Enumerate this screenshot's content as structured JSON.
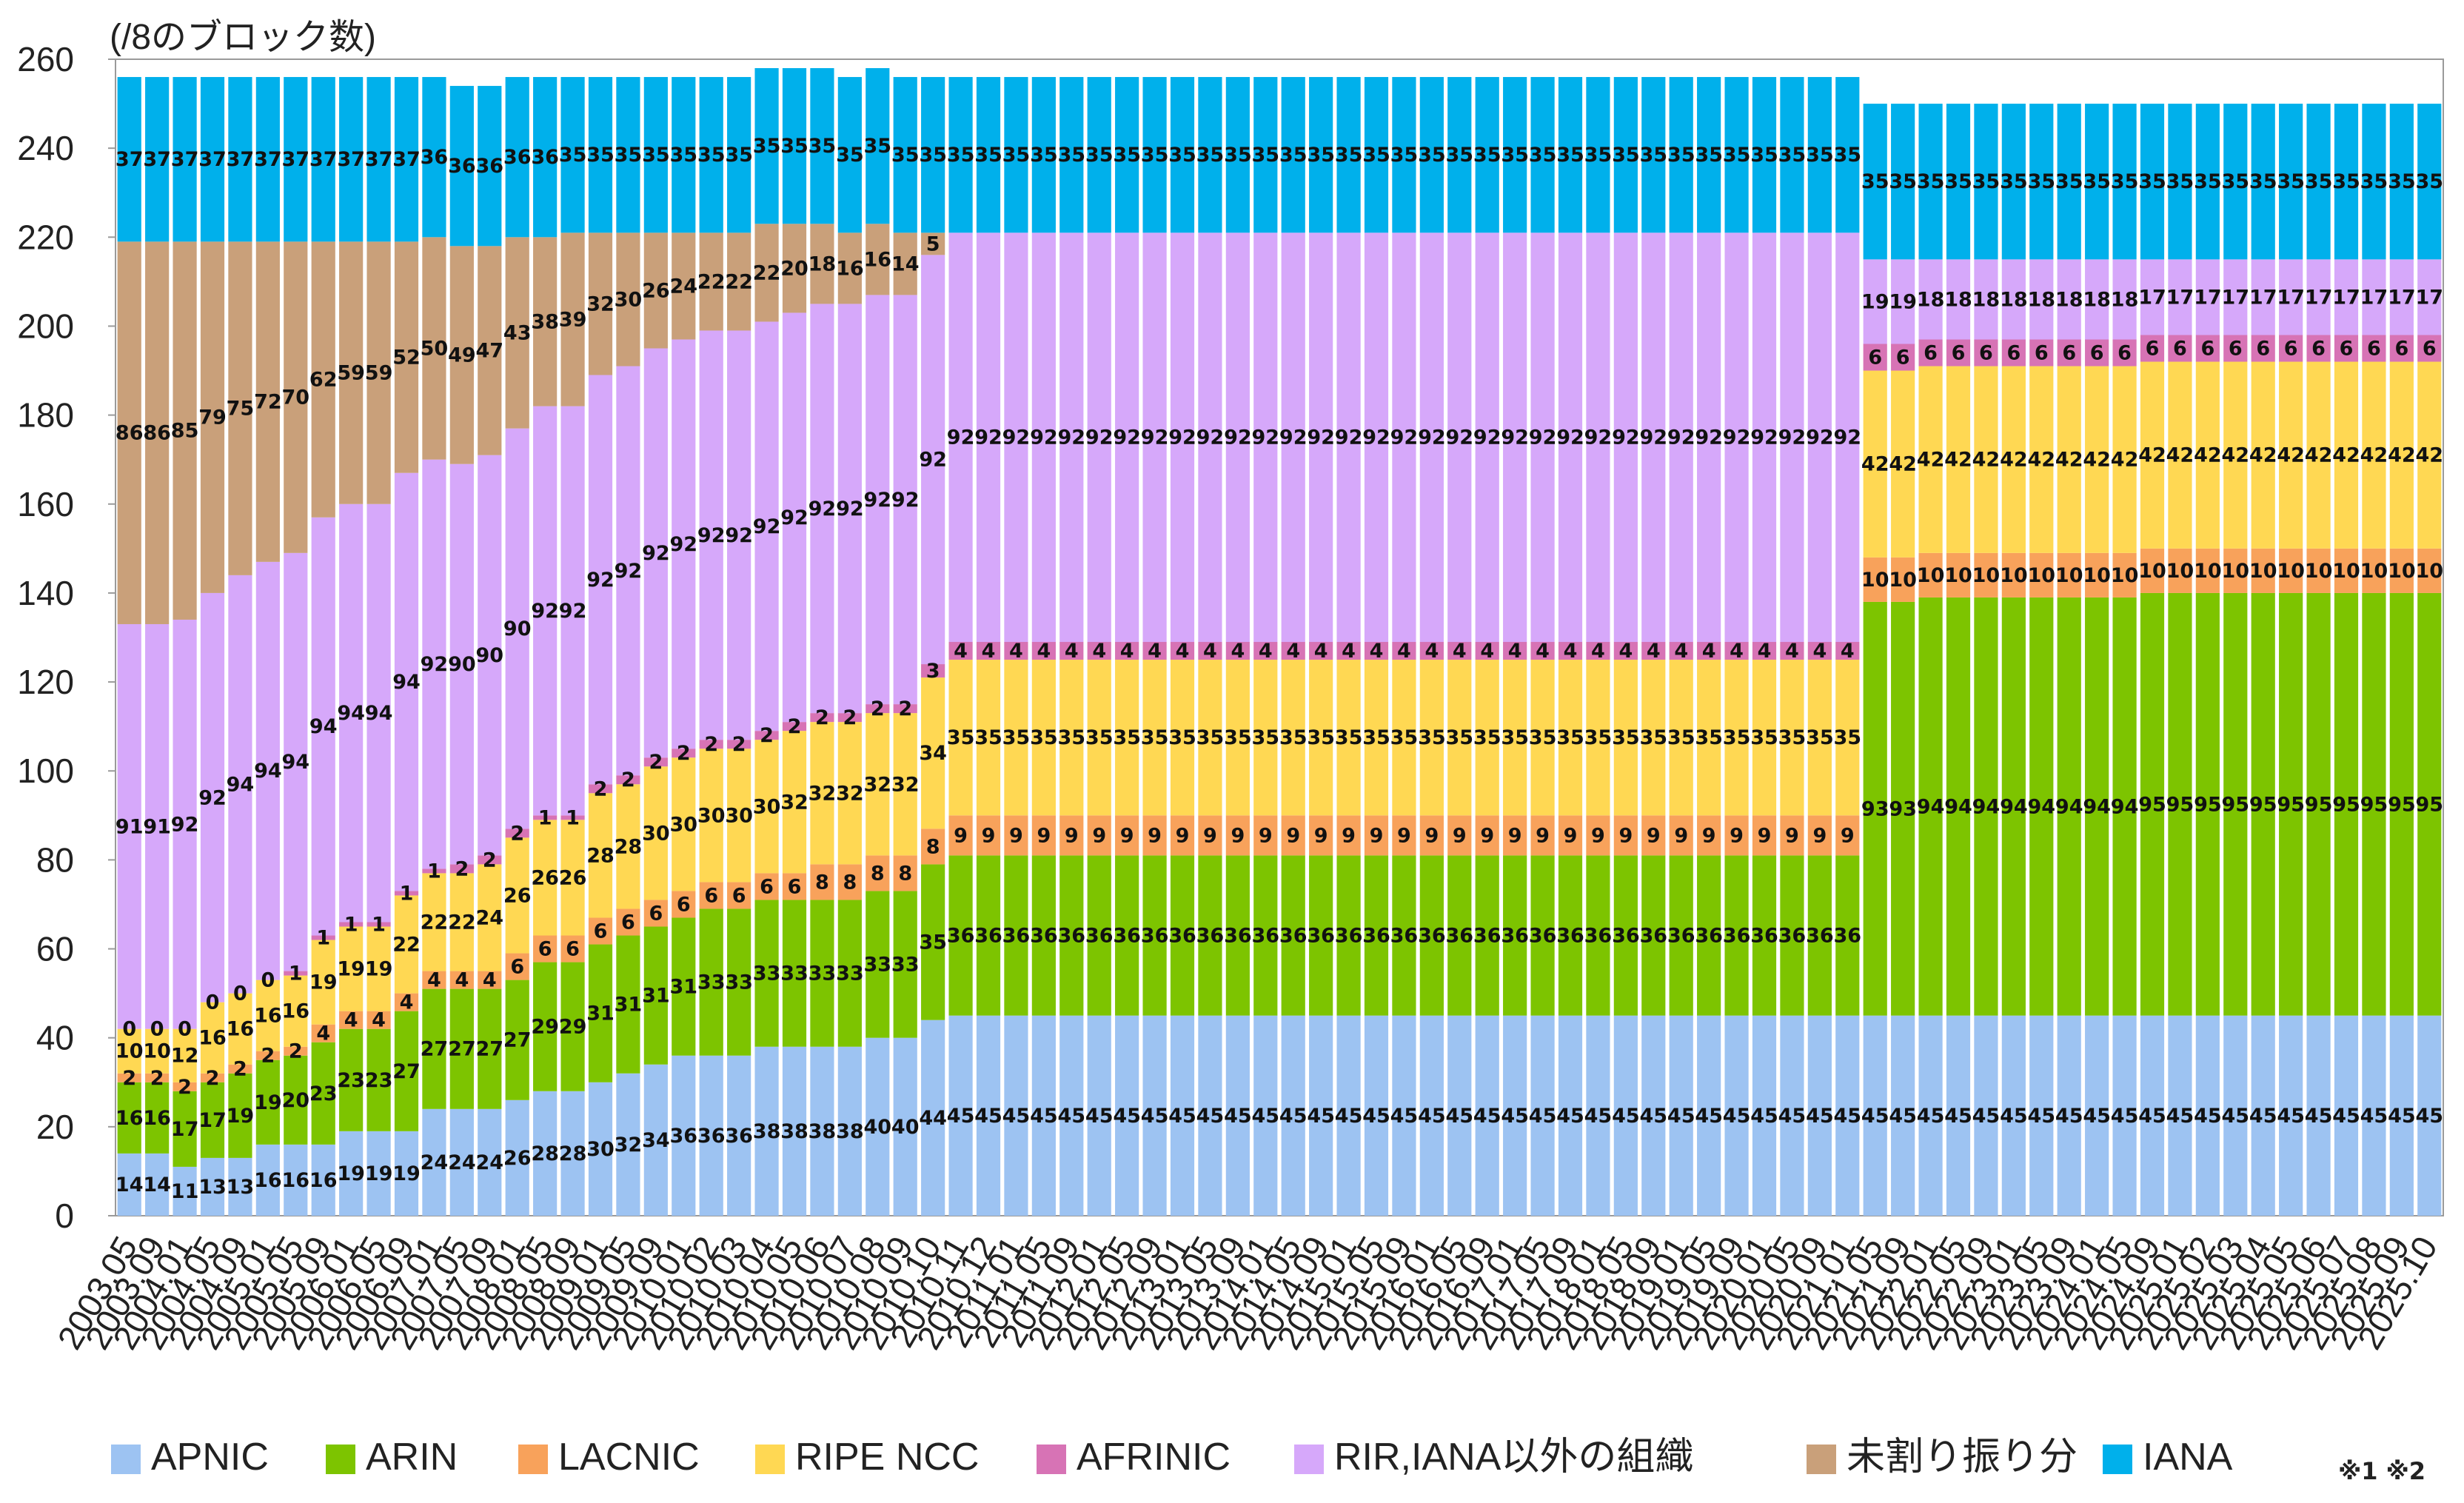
{
  "chart_data": {
    "type": "bar",
    "stacked": true,
    "unit_label": "(/8のブロック数)",
    "ylim": [
      0,
      260
    ],
    "yticks": [
      0,
      20,
      40,
      60,
      80,
      100,
      120,
      140,
      160,
      180,
      200,
      220,
      240,
      260
    ],
    "note": "※1 ※2",
    "categories": [
      "2003.05",
      "2003.09",
      "2004.01",
      "2004.05",
      "2004.09",
      "2005.01",
      "2005.05",
      "2005.09",
      "2006.01",
      "2006.05",
      "2006.09",
      "2007.01",
      "2007.05",
      "2007.09",
      "2008.01",
      "2008.05",
      "2008.09",
      "2009.01",
      "2009.05",
      "2009.09",
      "2010.01",
      "2010.02",
      "2010.03",
      "2010.04",
      "2010.05",
      "2010.06",
      "2010.07",
      "2010.08",
      "2010.09",
      "2010.10",
      "2010.11",
      "2010.12",
      "2011.01",
      "2011.05",
      "2011.09",
      "2012.01",
      "2012.05",
      "2012.09",
      "2013.01",
      "2013.05",
      "2013.09",
      "2014.01",
      "2014.05",
      "2014.09",
      "2015.01",
      "2015.05",
      "2015.09",
      "2016.01",
      "2016.05",
      "2016.09",
      "2017.01",
      "2017.05",
      "2017.09",
      "2018.01",
      "2018.05",
      "2018.09",
      "2019.01",
      "2019.05",
      "2019.09",
      "2020.01",
      "2020.05",
      "2020.09",
      "2021.01",
      "2021.05",
      "2021.09",
      "2022.01",
      "2022.05",
      "2022.09",
      "2023.01",
      "2023.05",
      "2023.09",
      "2024.01",
      "2024.05",
      "2024.09",
      "2025.01",
      "2025.02",
      "2025.03",
      "2025.04",
      "2025.05",
      "2025.06",
      "2025.07",
      "2025.08",
      "2025.09",
      "2025.10"
    ],
    "series": [
      {
        "name": "APNIC",
        "color": "#9DC3F2",
        "values": [
          14,
          14,
          11,
          13,
          13,
          16,
          16,
          16,
          19,
          19,
          19,
          24,
          24,
          24,
          26,
          28,
          28,
          30,
          32,
          34,
          36,
          36,
          36,
          38,
          38,
          38,
          38,
          40,
          40,
          44,
          45,
          45,
          45,
          45,
          45,
          45,
          45,
          45,
          45,
          45,
          45,
          45,
          45,
          45,
          45,
          45,
          45,
          45,
          45,
          45,
          45,
          45,
          45,
          45,
          45,
          45,
          45,
          45,
          45,
          45,
          45,
          45,
          45,
          45,
          45,
          45,
          45,
          45,
          45,
          45,
          45,
          45,
          45,
          45,
          45,
          45,
          45,
          45,
          45,
          45,
          45,
          45,
          45,
          45
        ]
      },
      {
        "name": "ARIN",
        "color": "#7DC400",
        "values": [
          16,
          16,
          17,
          17,
          19,
          19,
          20,
          23,
          23,
          23,
          27,
          27,
          27,
          27,
          27,
          29,
          29,
          31,
          31,
          31,
          31,
          33,
          33,
          33,
          33,
          33,
          33,
          33,
          33,
          35,
          36,
          36,
          36,
          36,
          36,
          36,
          36,
          36,
          36,
          36,
          36,
          36,
          36,
          36,
          36,
          36,
          36,
          36,
          36,
          36,
          36,
          36,
          36,
          36,
          36,
          36,
          36,
          36,
          36,
          36,
          36,
          36,
          36,
          93,
          93,
          94,
          94,
          94,
          94,
          94,
          94,
          94,
          94,
          95,
          95,
          95,
          95,
          95,
          95,
          95,
          95,
          95,
          95,
          95
        ]
      },
      {
        "name": "LACNIC",
        "color": "#F8A25B",
        "values": [
          2,
          2,
          2,
          2,
          2,
          2,
          2,
          4,
          4,
          4,
          4,
          4,
          4,
          4,
          6,
          6,
          6,
          6,
          6,
          6,
          6,
          6,
          6,
          6,
          6,
          8,
          8,
          8,
          8,
          8,
          9,
          9,
          9,
          9,
          9,
          9,
          9,
          9,
          9,
          9,
          9,
          9,
          9,
          9,
          9,
          9,
          9,
          9,
          9,
          9,
          9,
          9,
          9,
          9,
          9,
          9,
          9,
          9,
          9,
          9,
          9,
          9,
          9,
          10,
          10,
          10,
          10,
          10,
          10,
          10,
          10,
          10,
          10,
          10,
          10,
          10,
          10,
          10,
          10,
          10,
          10,
          10,
          10,
          10
        ]
      },
      {
        "name": "RIPE NCC",
        "color": "#FFD853",
        "values": [
          10,
          10,
          12,
          16,
          16,
          16,
          16,
          19,
          19,
          19,
          22,
          22,
          22,
          24,
          26,
          26,
          26,
          28,
          28,
          30,
          30,
          30,
          30,
          30,
          32,
          32,
          32,
          32,
          32,
          34,
          35,
          35,
          35,
          35,
          35,
          35,
          35,
          35,
          35,
          35,
          35,
          35,
          35,
          35,
          35,
          35,
          35,
          35,
          35,
          35,
          35,
          35,
          35,
          35,
          35,
          35,
          35,
          35,
          35,
          35,
          35,
          35,
          35,
          42,
          42,
          42,
          42,
          42,
          42,
          42,
          42,
          42,
          42,
          42,
          42,
          42,
          42,
          42,
          42,
          42,
          42,
          42,
          42,
          42
        ]
      },
      {
        "name": "AFRINIC",
        "color": "#D773B5",
        "values": [
          0,
          0,
          0,
          0,
          0,
          0,
          1,
          1,
          1,
          1,
          1,
          1,
          2,
          2,
          2,
          1,
          1,
          2,
          2,
          2,
          2,
          2,
          2,
          2,
          2,
          2,
          2,
          2,
          2,
          3,
          4,
          4,
          4,
          4,
          4,
          4,
          4,
          4,
          4,
          4,
          4,
          4,
          4,
          4,
          4,
          4,
          4,
          4,
          4,
          4,
          4,
          4,
          4,
          4,
          4,
          4,
          4,
          4,
          4,
          4,
          4,
          4,
          4,
          6,
          6,
          6,
          6,
          6,
          6,
          6,
          6,
          6,
          6,
          6,
          6,
          6,
          6,
          6,
          6,
          6,
          6,
          6,
          6,
          6
        ]
      },
      {
        "name": "RIR,IANA以外の組織",
        "color": "#D6A8FA",
        "values": [
          91,
          91,
          92,
          92,
          94,
          94,
          94,
          94,
          94,
          94,
          94,
          92,
          90,
          90,
          90,
          92,
          92,
          92,
          92,
          92,
          92,
          92,
          92,
          92,
          92,
          92,
          92,
          92,
          92,
          92,
          92,
          92,
          92,
          92,
          92,
          92,
          92,
          92,
          92,
          92,
          92,
          92,
          92,
          92,
          92,
          92,
          92,
          92,
          92,
          92,
          92,
          92,
          92,
          92,
          92,
          92,
          92,
          92,
          92,
          92,
          92,
          92,
          92,
          19,
          19,
          18,
          18,
          18,
          18,
          18,
          18,
          18,
          18,
          17,
          17,
          17,
          17,
          17,
          17,
          17,
          17,
          17,
          17,
          17
        ]
      },
      {
        "name": "未割り振り分",
        "color": "#C9A07A",
        "values": [
          86,
          86,
          85,
          79,
          75,
          72,
          70,
          62,
          59,
          59,
          52,
          50,
          49,
          47,
          43,
          38,
          39,
          32,
          30,
          26,
          24,
          22,
          22,
          22,
          20,
          18,
          16,
          16,
          14,
          5,
          0,
          0,
          0,
          0,
          0,
          0,
          0,
          0,
          0,
          0,
          0,
          0,
          0,
          0,
          0,
          0,
          0,
          0,
          0,
          0,
          0,
          0,
          0,
          0,
          0,
          0,
          0,
          0,
          0,
          0,
          0,
          0,
          0,
          0,
          0,
          0,
          0,
          0,
          0,
          0,
          0,
          0,
          0,
          0,
          0,
          0,
          0,
          0,
          0,
          0,
          0,
          0,
          0,
          0
        ]
      },
      {
        "name": "IANA",
        "color": "#00B0EB",
        "values": [
          37,
          37,
          37,
          37,
          37,
          37,
          37,
          37,
          37,
          37,
          37,
          36,
          36,
          36,
          36,
          36,
          35,
          35,
          35,
          35,
          35,
          35,
          35,
          35,
          35,
          35,
          35,
          35,
          35,
          35,
          35,
          35,
          35,
          35,
          35,
          35,
          35,
          35,
          35,
          35,
          35,
          35,
          35,
          35,
          35,
          35,
          35,
          35,
          35,
          35,
          35,
          35,
          35,
          35,
          35,
          35,
          35,
          35,
          35,
          35,
          35,
          35,
          35,
          35,
          35,
          35,
          35,
          35,
          35,
          35,
          35,
          35,
          35,
          35,
          35,
          35,
          35,
          35,
          35,
          35,
          35,
          35,
          35,
          35
        ]
      }
    ]
  }
}
